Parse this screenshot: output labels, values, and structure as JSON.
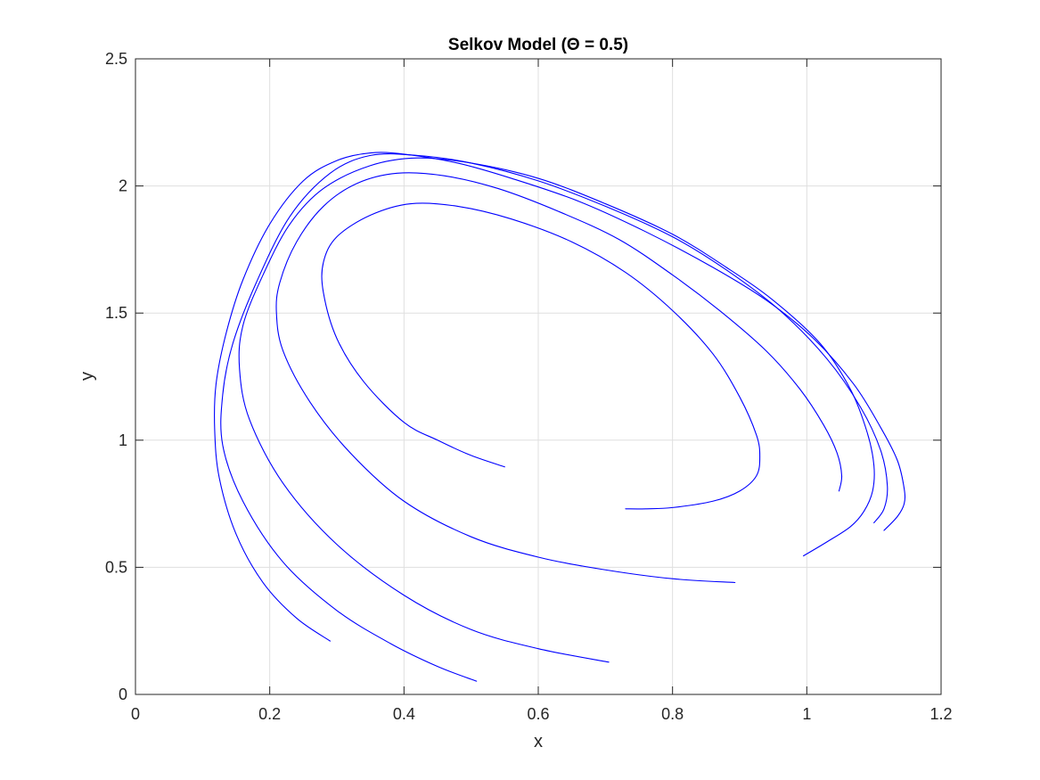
{
  "chart_data": {
    "type": "line",
    "title": "Selkov Model (Θ = 0.5)",
    "xlabel": "x",
    "ylabel": "y",
    "xlim": [
      0,
      1.2
    ],
    "ylim": [
      0,
      2.5
    ],
    "xticks": [
      0,
      0.2,
      0.4,
      0.6,
      0.8,
      1,
      1.2
    ],
    "xtick_labels": [
      "0",
      "0.2",
      "0.4",
      "0.6",
      "0.8",
      "1",
      "1.2"
    ],
    "yticks": [
      0,
      0.5,
      1,
      1.5,
      2,
      2.5
    ],
    "ytick_labels": [
      "0",
      "0.5",
      "1",
      "1.5",
      "2",
      "2.5"
    ],
    "grid": true,
    "legend": "none",
    "line_color": "#0000ff",
    "series": [
      {
        "x": [
          0.55,
          0.5,
          0.45,
          0.4,
          0.34,
          0.3,
          0.28,
          0.28,
          0.3,
          0.35,
          0.41,
          0.48,
          0.56,
          0.65,
          0.73,
          0.8,
          0.86,
          0.9,
          0.925,
          0.93,
          0.925,
          0.9,
          0.86,
          0.8,
          0.76,
          0.73
        ],
        "y": [
          0.895,
          0.94,
          1.0,
          1.07,
          1.23,
          1.4,
          1.58,
          1.7,
          1.8,
          1.885,
          1.93,
          1.92,
          1.87,
          1.78,
          1.66,
          1.51,
          1.34,
          1.17,
          1.02,
          0.935,
          0.86,
          0.8,
          0.76,
          0.735,
          0.73,
          0.73
        ]
      },
      {
        "x": [
          0.893,
          0.8,
          0.7,
          0.6,
          0.5,
          0.4,
          0.32,
          0.26,
          0.22,
          0.21,
          0.215,
          0.24,
          0.28,
          0.33,
          0.39,
          0.46,
          0.54,
          0.63,
          0.72,
          0.8,
          0.87,
          0.94,
          0.99,
          1.025,
          1.045,
          1.052,
          1.048
        ],
        "y": [
          0.44,
          0.455,
          0.49,
          0.54,
          0.62,
          0.76,
          0.95,
          1.15,
          1.35,
          1.5,
          1.62,
          1.78,
          1.92,
          2.01,
          2.05,
          2.04,
          1.99,
          1.9,
          1.79,
          1.65,
          1.51,
          1.35,
          1.2,
          1.06,
          0.95,
          0.86,
          0.8
        ]
      },
      {
        "x": [
          0.705,
          0.6,
          0.5,
          0.4,
          0.3,
          0.22,
          0.17,
          0.155,
          0.16,
          0.19,
          0.23,
          0.28,
          0.35,
          0.42,
          0.5,
          0.6,
          0.7,
          0.8,
          0.88,
          0.95,
          1.02,
          1.065,
          1.09,
          1.1,
          1.098,
          1.085,
          1.065,
          1.03,
          0.995
        ],
        "y": [
          0.127,
          0.18,
          0.255,
          0.39,
          0.59,
          0.83,
          1.08,
          1.28,
          1.45,
          1.65,
          1.85,
          1.99,
          2.08,
          2.11,
          2.09,
          2.03,
          1.93,
          1.81,
          1.68,
          1.55,
          1.38,
          1.2,
          1.03,
          0.9,
          0.8,
          0.72,
          0.66,
          0.6,
          0.545
        ]
      },
      {
        "x": [
          0.508,
          0.45,
          0.38,
          0.3,
          0.22,
          0.16,
          0.13,
          0.13,
          0.145,
          0.18,
          0.23,
          0.29,
          0.35,
          0.42,
          0.5,
          0.6,
          0.7,
          0.8,
          0.88,
          0.96,
          1.03,
          1.08,
          1.11,
          1.12,
          1.115,
          1.1
        ],
        "y": [
          0.052,
          0.11,
          0.2,
          0.33,
          0.52,
          0.76,
          0.98,
          1.18,
          1.38,
          1.62,
          1.88,
          2.05,
          2.12,
          2.12,
          2.09,
          2.02,
          1.92,
          1.8,
          1.67,
          1.51,
          1.32,
          1.13,
          0.96,
          0.82,
          0.73,
          0.675
        ]
      },
      {
        "x": [
          0.29,
          0.24,
          0.19,
          0.15,
          0.125,
          0.118,
          0.12,
          0.135,
          0.16,
          0.2,
          0.25,
          0.3,
          0.35,
          0.4,
          0.48,
          0.56,
          0.66,
          0.76,
          0.86,
          0.94,
          1.01,
          1.07,
          1.11,
          1.135,
          1.145,
          1.145,
          1.135,
          1.115
        ],
        "y": [
          0.21,
          0.3,
          0.44,
          0.63,
          0.85,
          1.04,
          1.22,
          1.42,
          1.63,
          1.85,
          2.02,
          2.1,
          2.13,
          2.125,
          2.09,
          2.03,
          1.94,
          1.82,
          1.68,
          1.55,
          1.4,
          1.22,
          1.05,
          0.92,
          0.81,
          0.75,
          0.7,
          0.645
        ]
      }
    ]
  }
}
